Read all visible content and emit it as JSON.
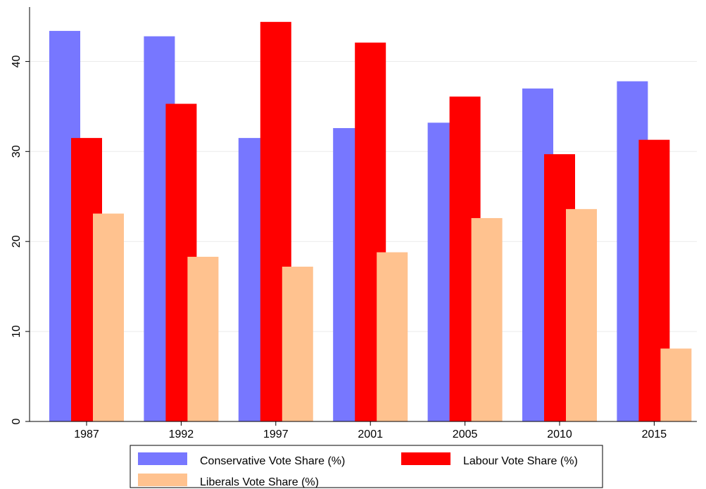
{
  "chart_data": {
    "type": "bar",
    "categories": [
      "1987",
      "1992",
      "1997",
      "2001",
      "2005",
      "2010",
      "2015"
    ],
    "series": [
      {
        "name": "Conservative Vote Share (%)",
        "color": "#7777ff",
        "values": [
          43.4,
          42.8,
          31.5,
          32.6,
          33.2,
          37.0,
          37.8
        ]
      },
      {
        "name": "Labour Vote Share (%)",
        "color": "#ff0000",
        "values": [
          31.5,
          35.3,
          44.4,
          42.1,
          36.1,
          29.7,
          31.3
        ]
      },
      {
        "name": "Liberals Vote Share (%)",
        "color": "#ffc28f",
        "values": [
          23.1,
          18.3,
          17.2,
          18.8,
          22.6,
          23.6,
          8.1
        ]
      }
    ],
    "title": "",
    "xlabel": "",
    "ylabel": "",
    "ylim": [
      0,
      45
    ],
    "yticks": [
      "0",
      "10",
      "20",
      "30",
      "40"
    ],
    "grid": true,
    "legend_position": "bottom"
  }
}
